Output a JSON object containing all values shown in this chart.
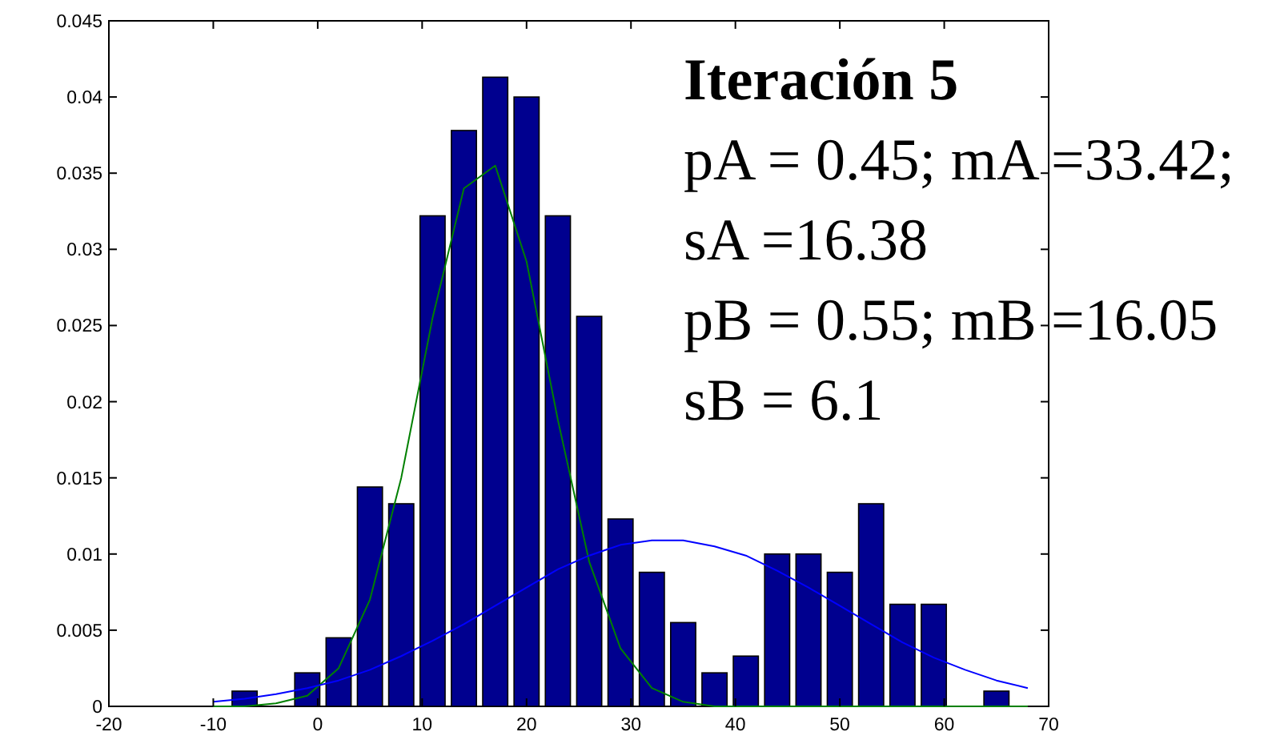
{
  "chart_data": {
    "type": "bar",
    "xlim": [
      -20,
      70
    ],
    "ylim": [
      0,
      0.045
    ],
    "xticks": [
      -20,
      -10,
      0,
      10,
      20,
      30,
      40,
      50,
      60,
      70
    ],
    "yticks": [
      0,
      0.005,
      0.01,
      0.015,
      0.02,
      0.025,
      0.03,
      0.035,
      0.04,
      0.045
    ],
    "grid": false,
    "annotations": [
      "Iteración 5",
      "pA = 0.45; mA =33.42;",
      "sA =16.38",
      "pB = 0.55; mB =16.05",
      "sB = 6.1"
    ],
    "series": [
      {
        "color": "#00008f",
        "x": [
          -7,
          -4,
          -1,
          2,
          5,
          8,
          11,
          14,
          17,
          20,
          23,
          26,
          29,
          32,
          35,
          38,
          41,
          44,
          47,
          50,
          53,
          56,
          59,
          62,
          65
        ],
        "values": [
          0.001,
          0,
          0.0022,
          0.0045,
          0.0144,
          0.0133,
          0.0322,
          0.0378,
          0.0413,
          0.04,
          0.0322,
          0.0256,
          0.0123,
          0.0088,
          0.0055,
          0.0022,
          0.0033,
          0.01,
          0.01,
          0.0088,
          0.0133,
          0.0067,
          0.0067,
          0,
          0.001
        ]
      },
      {
        "type": "line",
        "color": "#008000",
        "x": [
          -10,
          -7,
          -4,
          -1,
          2,
          5,
          8,
          11,
          14,
          17,
          20,
          23,
          26,
          29,
          32,
          35,
          38,
          41,
          44,
          47,
          50,
          53,
          56,
          59,
          62,
          65,
          68
        ],
        "values": [
          0,
          0,
          0.0002,
          0.0007,
          0.0025,
          0.007,
          0.015,
          0.0255,
          0.034,
          0.0355,
          0.0292,
          0.0188,
          0.0095,
          0.0038,
          0.0012,
          0.0003,
          0,
          0,
          0,
          0,
          0,
          0,
          0,
          0,
          0,
          0,
          0
        ]
      },
      {
        "type": "line",
        "color": "#0000ff",
        "x": [
          -10,
          -7,
          -4,
          -1,
          2,
          5,
          8,
          11,
          14,
          17,
          20,
          23,
          26,
          29,
          32,
          35,
          38,
          41,
          44,
          47,
          50,
          53,
          56,
          59,
          62,
          65,
          68
        ],
        "values": [
          0.0003,
          0.0005,
          0.0008,
          0.0012,
          0.0017,
          0.0024,
          0.0033,
          0.0043,
          0.0054,
          0.0066,
          0.0078,
          0.009,
          0.0099,
          0.0106,
          0.0109,
          0.0109,
          0.0105,
          0.0099,
          0.0089,
          0.0078,
          0.0066,
          0.0054,
          0.0042,
          0.0032,
          0.0024,
          0.0017,
          0.0012
        ]
      }
    ]
  }
}
